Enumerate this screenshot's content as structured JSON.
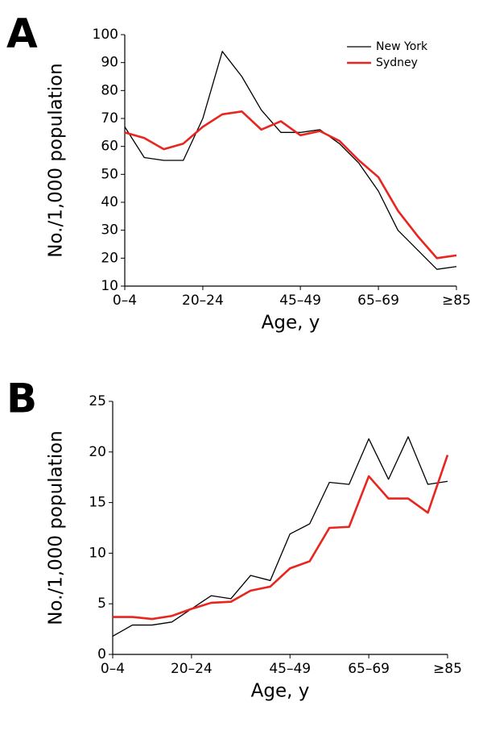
{
  "chart_data": [
    {
      "type": "line",
      "panel_label": "A",
      "ylabel": "No./1,000 population",
      "xlabel": "Age, y",
      "categories": [
        "0–4",
        null,
        null,
        null,
        "20–24",
        null,
        null,
        null,
        null,
        "45–49",
        null,
        null,
        null,
        "65–69",
        null,
        null,
        null,
        "≥85"
      ],
      "series": [
        {
          "name": "New York",
          "color": "#000000",
          "width": 1.3,
          "values": [
            67,
            56,
            55,
            55,
            70,
            94,
            85,
            73,
            65,
            65,
            66,
            61,
            54,
            44,
            30,
            23,
            16,
            17
          ]
        },
        {
          "name": "Sydney",
          "color": "#e8251f",
          "width": 2.6,
          "values": [
            65,
            63,
            59,
            61,
            67,
            71.5,
            72.5,
            66,
            69,
            64,
            65.5,
            62,
            55,
            49,
            37,
            28,
            20,
            21
          ]
        }
      ],
      "ylim": [
        10,
        100
      ],
      "yticks": [
        10,
        20,
        30,
        40,
        50,
        60,
        70,
        80,
        90,
        100
      ],
      "legend": "upper right"
    },
    {
      "type": "line",
      "panel_label": "B",
      "ylabel": "No./1,000 population",
      "xlabel": "Age, y",
      "categories": [
        "0–4",
        null,
        null,
        null,
        "20–24",
        null,
        null,
        null,
        null,
        "45–49",
        null,
        null,
        null,
        "65–69",
        null,
        null,
        null,
        "≥85"
      ],
      "series": [
        {
          "color": "#000000",
          "width": 1.3,
          "values": [
            1.8,
            2.9,
            2.9,
            3.2,
            4.5,
            5.8,
            5.5,
            7.8,
            7.3,
            11.9,
            12.9,
            17,
            16.8,
            21.3,
            17.3,
            21.5,
            16.8,
            17.1
          ]
        },
        {
          "color": "#e8251f",
          "width": 2.6,
          "values": [
            3.7,
            3.7,
            3.5,
            3.8,
            4.5,
            5.1,
            5.2,
            6.3,
            6.7,
            8.5,
            9.2,
            12.5,
            12.6,
            17.6,
            15.4,
            15.4,
            14,
            19.7
          ]
        }
      ],
      "ylim": [
        0,
        25
      ],
      "yticks": [
        0,
        5,
        10,
        15,
        20,
        25
      ]
    }
  ]
}
